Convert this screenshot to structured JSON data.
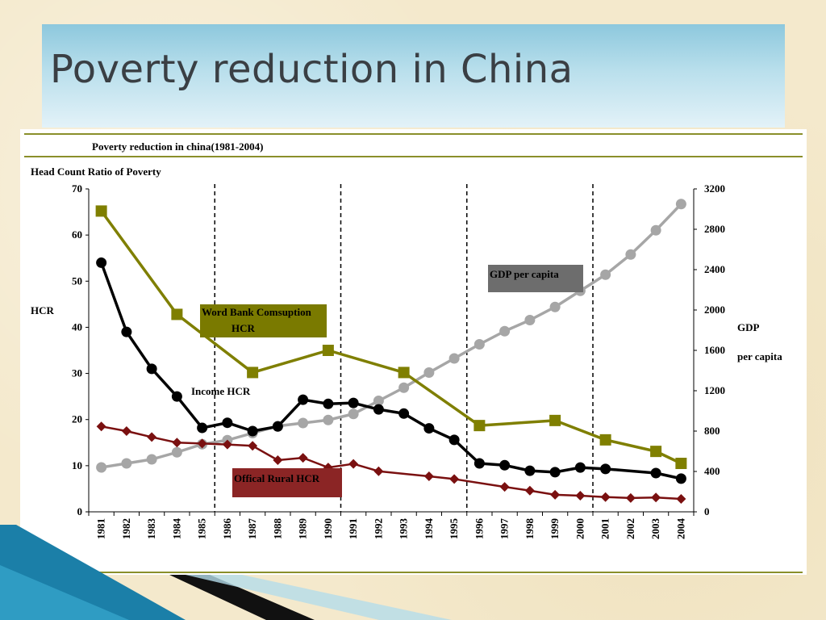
{
  "slide": {
    "title": "Poverty reduction in China"
  },
  "chart_data": {
    "type": "line",
    "title": "Poverty reduction in china(1981-2004)",
    "subtitle": "Head Count Ratio of Poverty",
    "ylabel_left": "HCR",
    "ylabel_right_line1": "GDP",
    "ylabel_right_line2": "per capita",
    "ylim_left": [
      0,
      70
    ],
    "yticks_left": [
      0,
      10,
      20,
      30,
      40,
      50,
      60,
      70
    ],
    "ylim_right": [
      0,
      3200
    ],
    "yticks_right": [
      0,
      400,
      800,
      1200,
      1600,
      2000,
      2400,
      2800,
      3200
    ],
    "x_categories": [
      "1981",
      "1982",
      "1983",
      "1984",
      "1985",
      "1986",
      "1987",
      "1988",
      "1989",
      "1990",
      "1991",
      "1992",
      "1993",
      "1994",
      "1995",
      "1996",
      "1997",
      "1998",
      "1999",
      "2000",
      "2001",
      "2002",
      "2003",
      "2004"
    ],
    "dividers": [
      "1985",
      "1990",
      "1995",
      "2000"
    ],
    "series": [
      {
        "name": "Income HCR",
        "axis": "left",
        "color": "#000000",
        "marker": "circle",
        "x": [
          "1981",
          "1982",
          "1983",
          "1984",
          "1985",
          "1986",
          "1987",
          "1988",
          "1989",
          "1990",
          "1991",
          "1992",
          "1993",
          "1994",
          "1995",
          "1996",
          "1997",
          "1998",
          "1999",
          "2000",
          "2001",
          "2003",
          "2004"
        ],
        "values": [
          54,
          39,
          31,
          25,
          18.2,
          19.3,
          17.5,
          18.5,
          24.3,
          23.4,
          23.6,
          22.2,
          21.3,
          18.1,
          15.6,
          10.5,
          10.1,
          8.9,
          8.6,
          9.6,
          9.3,
          8.4,
          7.2
        ]
      },
      {
        "name": "GDP per capita",
        "axis": "right",
        "color": "#a6a6a6",
        "marker": "circle",
        "x": [
          "1981",
          "1982",
          "1983",
          "1984",
          "1985",
          "1986",
          "1987",
          "1988",
          "1989",
          "1990",
          "1991",
          "1992",
          "1993",
          "1994",
          "1995",
          "1996",
          "1997",
          "1998",
          "1999",
          "2000",
          "2001",
          "2002",
          "2003",
          "2004"
        ],
        "values": [
          440,
          480,
          520,
          590,
          670,
          710,
          780,
          850,
          880,
          910,
          970,
          1100,
          1230,
          1380,
          1520,
          1660,
          1790,
          1900,
          2030,
          2190,
          2350,
          2550,
          2790,
          3050
        ]
      },
      {
        "name": "Word Bank Comsuption HCR",
        "axis": "left",
        "color": "#7f7f00",
        "marker": "square",
        "x": [
          "1981",
          "1984",
          "1987",
          "1990",
          "1993",
          "1996",
          "1999",
          "2001",
          "2003",
          "2004"
        ],
        "values": [
          65.2,
          42.8,
          30.2,
          35.0,
          30.2,
          18.7,
          19.8,
          15.6,
          13.1,
          10.5
        ]
      },
      {
        "name": "Offical Rural HCR",
        "axis": "left",
        "color": "#7a1010",
        "marker": "diamond",
        "x": [
          "1981",
          "1982",
          "1983",
          "1984",
          "1985",
          "1986",
          "1987",
          "1988",
          "1989",
          "1990",
          "1991",
          "1992",
          "1994",
          "1995",
          "1997",
          "1998",
          "1999",
          "2000",
          "2001",
          "2002",
          "2003",
          "2004"
        ],
        "values": [
          18.5,
          17.5,
          16.2,
          15.0,
          14.8,
          14.6,
          14.3,
          11.2,
          11.7,
          9.6,
          10.4,
          8.8,
          7.7,
          7.1,
          5.4,
          4.6,
          3.7,
          3.5,
          3.2,
          3.0,
          3.1,
          2.8
        ]
      }
    ],
    "annotations": {
      "income": "Income HCR",
      "gdp": "GDP per capita",
      "wb_line1": "Word Bank Comsuption",
      "wb_line2": "HCR",
      "rural": "Offical Rural HCR"
    },
    "label_colors": {
      "gdp_bg": "#6d6d6d",
      "wb_bg": "#7a7a00",
      "rural_bg": "#8b2525"
    }
  }
}
